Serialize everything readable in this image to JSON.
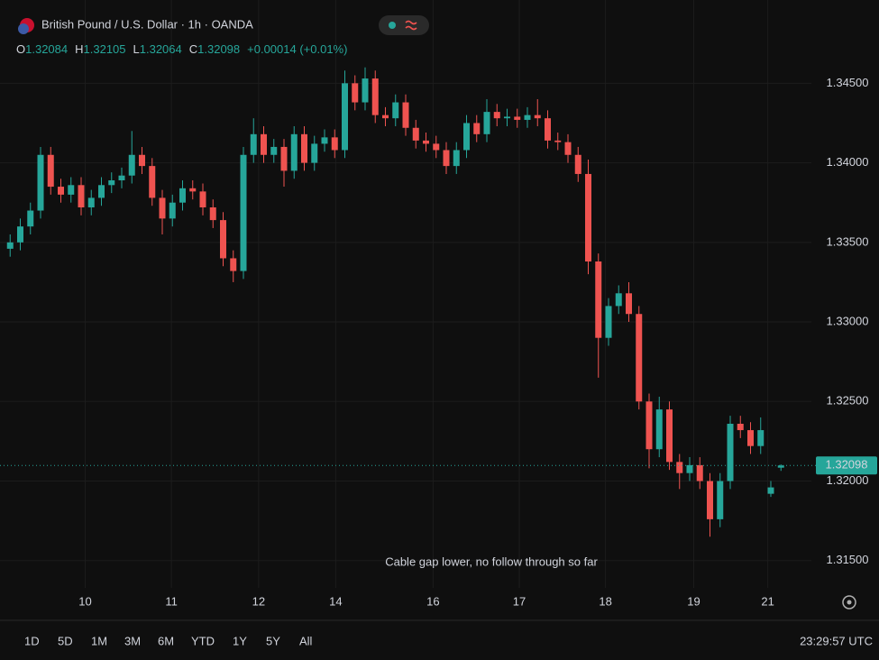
{
  "header": {
    "title": "British Pound / U.S. Dollar · 1h · OANDA",
    "open_label": "O",
    "high_label": "H",
    "low_label": "L",
    "close_label": "C",
    "change": "+0.00014 (+0.01%)"
  },
  "chart_data": {
    "type": "candlestick",
    "x": [
      1,
      2,
      3,
      4,
      5,
      6,
      7,
      8,
      9,
      10,
      11,
      12,
      13,
      14,
      15,
      16,
      17,
      18,
      19,
      20,
      21,
      22,
      23,
      24,
      25,
      26,
      27,
      28,
      29,
      30,
      31,
      32,
      33,
      34,
      35,
      36,
      37,
      38,
      39,
      40,
      41,
      42,
      43,
      44,
      45,
      46,
      47,
      48,
      49,
      50,
      51,
      52,
      53,
      54,
      55,
      56,
      57,
      58,
      59,
      60,
      61,
      62,
      63,
      64,
      65,
      66,
      67,
      68,
      69,
      70,
      71,
      72,
      73,
      74,
      75,
      76,
      77
    ],
    "open": [
      1.3346,
      1.335,
      1.336,
      1.337,
      1.3405,
      1.3385,
      1.338,
      1.3386,
      1.3372,
      1.3378,
      1.3386,
      1.3389,
      1.3392,
      1.3405,
      1.3398,
      1.3378,
      1.3365,
      1.3375,
      1.3384,
      1.3382,
      1.3372,
      1.3364,
      1.334,
      1.3332,
      1.3405,
      1.3418,
      1.3405,
      1.341,
      1.3395,
      1.3418,
      1.34,
      1.3412,
      1.3416,
      1.3408,
      1.345,
      1.3438,
      1.3453,
      1.343,
      1.3428,
      1.3438,
      1.3422,
      1.3414,
      1.3412,
      1.3408,
      1.3398,
      1.3408,
      1.3425,
      1.3418,
      1.3432,
      1.3428,
      1.3429,
      1.3427,
      1.343,
      1.3428,
      1.3414,
      1.3413,
      1.3405,
      1.3393,
      1.3338,
      1.329,
      1.331,
      1.3318,
      1.3305,
      1.325,
      1.322,
      1.3245,
      1.3212,
      1.3205,
      1.321,
      1.32,
      1.3176,
      1.32,
      1.3236,
      1.3232,
      1.3222,
      1.3192,
      1.32084
    ],
    "high": [
      1.3355,
      1.3365,
      1.3375,
      1.341,
      1.341,
      1.339,
      1.3391,
      1.3391,
      1.3383,
      1.3391,
      1.3394,
      1.3397,
      1.342,
      1.341,
      1.3403,
      1.3383,
      1.338,
      1.3389,
      1.3389,
      1.3387,
      1.3377,
      1.3369,
      1.3345,
      1.341,
      1.3428,
      1.3423,
      1.3415,
      1.3415,
      1.3423,
      1.3423,
      1.3417,
      1.3421,
      1.3421,
      1.3458,
      1.3455,
      1.346,
      1.3458,
      1.3435,
      1.3443,
      1.3443,
      1.3427,
      1.3419,
      1.3417,
      1.3413,
      1.3413,
      1.343,
      1.343,
      1.344,
      1.3437,
      1.3434,
      1.3434,
      1.3435,
      1.344,
      1.3433,
      1.3419,
      1.3418,
      1.341,
      1.3402,
      1.3343,
      1.3315,
      1.3323,
      1.3325,
      1.331,
      1.3255,
      1.3253,
      1.325,
      1.3217,
      1.3215,
      1.3215,
      1.3205,
      1.3205,
      1.3241,
      1.3241,
      1.3237,
      1.324,
      1.32,
      1.32105
    ],
    "low": [
      1.3341,
      1.3345,
      1.3355,
      1.3365,
      1.338,
      1.3375,
      1.3375,
      1.3367,
      1.3367,
      1.3373,
      1.3381,
      1.3384,
      1.3387,
      1.3393,
      1.3373,
      1.3355,
      1.336,
      1.337,
      1.3377,
      1.3367,
      1.3359,
      1.3335,
      1.3325,
      1.3327,
      1.34,
      1.34,
      1.34,
      1.3385,
      1.339,
      1.3395,
      1.3395,
      1.3407,
      1.3403,
      1.3403,
      1.3433,
      1.3433,
      1.3425,
      1.3423,
      1.3423,
      1.3417,
      1.3409,
      1.3407,
      1.3403,
      1.3393,
      1.3393,
      1.3403,
      1.3413,
      1.3413,
      1.3423,
      1.3423,
      1.3422,
      1.3422,
      1.3423,
      1.3409,
      1.3408,
      1.34,
      1.3388,
      1.333,
      1.3265,
      1.3285,
      1.3305,
      1.33,
      1.3245,
      1.3208,
      1.3215,
      1.3207,
      1.3195,
      1.32,
      1.3195,
      1.3165,
      1.3171,
      1.3195,
      1.3227,
      1.3217,
      1.3217,
      1.319,
      1.32064
    ],
    "close": [
      1.335,
      1.336,
      1.337,
      1.3405,
      1.3385,
      1.338,
      1.3386,
      1.3372,
      1.3378,
      1.3386,
      1.3389,
      1.3392,
      1.3405,
      1.3398,
      1.3378,
      1.3365,
      1.3375,
      1.3384,
      1.3382,
      1.3372,
      1.3364,
      1.334,
      1.3332,
      1.3405,
      1.3418,
      1.3405,
      1.341,
      1.3395,
      1.3418,
      1.34,
      1.3412,
      1.3416,
      1.3408,
      1.345,
      1.3438,
      1.3453,
      1.343,
      1.3428,
      1.3438,
      1.3422,
      1.3414,
      1.3412,
      1.3408,
      1.3398,
      1.3408,
      1.3425,
      1.3418,
      1.3432,
      1.3428,
      1.3429,
      1.3427,
      1.343,
      1.3428,
      1.3414,
      1.3413,
      1.3405,
      1.3393,
      1.3338,
      1.329,
      1.331,
      1.3318,
      1.3305,
      1.325,
      1.322,
      1.3245,
      1.3212,
      1.3205,
      1.321,
      1.32,
      1.3176,
      1.32,
      1.3236,
      1.3232,
      1.3222,
      1.3232,
      1.3196,
      1.32098
    ],
    "up_color": "#26a69a",
    "down_color": "#ef5350",
    "xlim": [
      0,
      80
    ],
    "xticks": [
      {
        "value": 8.4,
        "label": "10"
      },
      {
        "value": 16.9,
        "label": "11"
      },
      {
        "value": 25.5,
        "label": "12"
      },
      {
        "value": 33.1,
        "label": "14"
      },
      {
        "value": 42.7,
        "label": "16"
      },
      {
        "value": 51.2,
        "label": "17"
      },
      {
        "value": 59.7,
        "label": "18"
      },
      {
        "value": 68.4,
        "label": "19"
      },
      {
        "value": 75.7,
        "label": "21"
      }
    ],
    "ylim": [
      1.3134,
      1.3474
    ],
    "yticks": [
      {
        "value": 1.315,
        "label": "1.31500"
      },
      {
        "value": 1.32,
        "label": "1.32000"
      },
      {
        "value": 1.325,
        "label": "1.32500"
      },
      {
        "value": 1.33,
        "label": "1.33000"
      },
      {
        "value": 1.335,
        "label": "1.33500"
      },
      {
        "value": 1.34,
        "label": "1.34000"
      },
      {
        "value": 1.345,
        "label": "1.34500"
      }
    ],
    "grid": true,
    "annotation": "Cable gap lower, no follow through so far",
    "annotation_color": "#e8201c"
  },
  "toolbar": {
    "ranges": [
      "1D",
      "5D",
      "1M",
      "3M",
      "6M",
      "YTD",
      "1Y",
      "5Y",
      "All"
    ],
    "clock": "23:29:57 UTC"
  }
}
